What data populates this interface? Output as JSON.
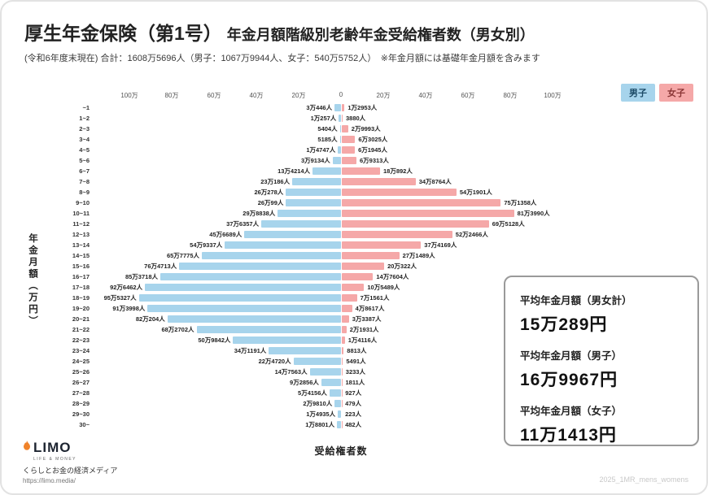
{
  "header": {
    "title_main": "厚生年金保険（第1号）",
    "title_sub": "年金月額階級別老齢年金受給権者数（男女別）",
    "subtitle": "(令和6年度末現在) 合計：1608万5696人（男子：1067万9944人、女子：540万5752人）　※年金月額には基礎年金月額を含みます"
  },
  "legend": {
    "male": "男子",
    "female": "女子"
  },
  "colors": {
    "male_bar": "#a7d4ec",
    "female_bar": "#f5a8a8",
    "male_chip_text": "#1c4a66",
    "female_chip_text": "#8a3535"
  },
  "chart_data": {
    "type": "bar",
    "variant": "population-pyramid",
    "title": "厚生年金保険（第1号）年金月額階級別老齢年金受給権者数（男女別）",
    "xlabel": "受給権者数",
    "ylabel": "年金月額（万円）",
    "unit": "人",
    "axis_ticks": [
      "100万",
      "80万",
      "60万",
      "40万",
      "20万",
      "0",
      "20万",
      "40万",
      "60万",
      "80万",
      "100万"
    ],
    "xlim": [
      -1000000,
      1000000
    ],
    "categories": [
      "~1",
      "1~2",
      "2~3",
      "3~4",
      "4~5",
      "5~6",
      "6~7",
      "7~8",
      "8~9",
      "9~10",
      "10~11",
      "11~12",
      "12~13",
      "13~14",
      "14~15",
      "15~16",
      "16~17",
      "17~18",
      "18~19",
      "19~20",
      "20~21",
      "21~22",
      "22~23",
      "23~24",
      "24~25",
      "25~26",
      "26~27",
      "27~28",
      "28~29",
      "29~30",
      "30~"
    ],
    "series": [
      {
        "name": "男子",
        "side": "left",
        "values": [
          30446,
          10257,
          5404,
          5185,
          14747,
          39134,
          134214,
          230186,
          260278,
          260099,
          298838,
          376357,
          456689,
          549337,
          657775,
          764713,
          853718,
          926462,
          955327,
          913998,
          820204,
          682702,
          509842,
          341191,
          224720,
          147563,
          92856,
          54156,
          29810,
          14935,
          18801
        ],
        "labels": [
          "3万446人",
          "1万257人",
          "5404人",
          "5185人",
          "1万4747人",
          "3万9134人",
          "13万4214人",
          "23万186人",
          "26万278人",
          "26万99人",
          "29万8838人",
          "37万6357人",
          "45万6689人",
          "54万9337人",
          "65万7775人",
          "76万4713人",
          "85万3718人",
          "92万6462人",
          "95万5327人",
          "91万3998人",
          "82万204人",
          "68万2702人",
          "50万9842人",
          "34万1191人",
          "22万4720人",
          "14万7563人",
          "9万2856人",
          "5万4156人",
          "2万9810人",
          "1万4935人",
          "1万8801人"
        ]
      },
      {
        "name": "女子",
        "side": "right",
        "values": [
          12953,
          3880,
          29993,
          63025,
          61945,
          69313,
          180892,
          348764,
          541901,
          751358,
          813990,
          695128,
          522466,
          374169,
          271489,
          200322,
          147604,
          105489,
          71561,
          48617,
          33387,
          21931,
          14116,
          8813,
          5491,
          3233,
          1811,
          927,
          479,
          223,
          482
        ],
        "labels": [
          "1万2953人",
          "3880人",
          "2万9993人",
          "6万3025人",
          "6万1945人",
          "6万9313人",
          "18万892人",
          "34万8764人",
          "54万1901人",
          "75万1358人",
          "81万3990人",
          "69万5128人",
          "52万2466人",
          "37万4169人",
          "27万1489人",
          "20万322人",
          "14万7604人",
          "10万5489人",
          "7万1561人",
          "4万8617人",
          "3万3387人",
          "2万1931人",
          "1万4116人",
          "8813人",
          "5491人",
          "3233人",
          "1811人",
          "927人",
          "479人",
          "223人",
          "482人"
        ]
      }
    ]
  },
  "averages": {
    "items": [
      {
        "label": "平均年金月額（男女計）",
        "value": "15万289円"
      },
      {
        "label": "平均年金月額（男子）",
        "value": "16万9967円"
      },
      {
        "label": "平均年金月額（女子）",
        "value": "11万1413円"
      }
    ]
  },
  "footer": {
    "logo": "LIMO",
    "logo_sub": "LIFE & MONEY",
    "tagline": "くらしとお金の経済メディア",
    "url": "https://limo.media/",
    "watermark": "2025_1MR_mens_womens"
  }
}
